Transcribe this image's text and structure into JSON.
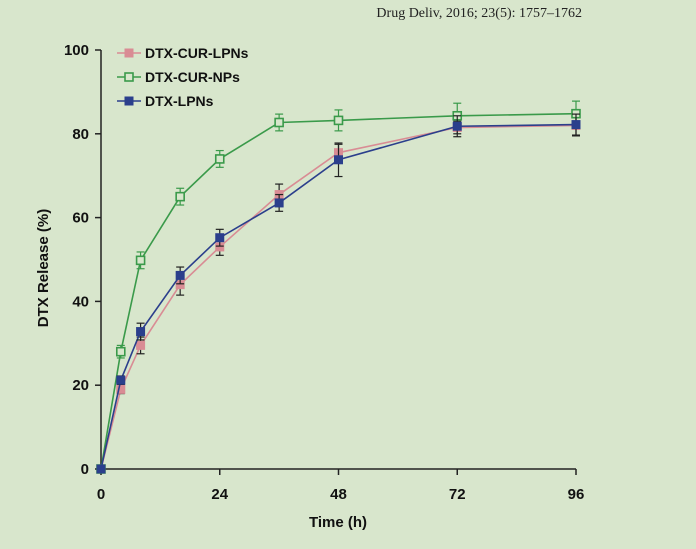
{
  "header": {
    "citation": "Drug Deliv, 2016; 23(5): 1757–1762"
  },
  "chart_data": {
    "type": "line",
    "title": "",
    "xlabel": "Time (h)",
    "ylabel": "DTX Release (%)",
    "xlim": [
      0,
      96
    ],
    "ylim": [
      0,
      100
    ],
    "xticks": [
      0,
      24,
      48,
      72,
      96
    ],
    "yticks": [
      0,
      20,
      40,
      60,
      80,
      100
    ],
    "x": [
      0,
      4,
      8,
      16,
      24,
      36,
      48,
      72,
      96
    ],
    "legend_position": "top-left",
    "grid": false,
    "series": [
      {
        "name": "DTX-CUR-LPNs",
        "color": "#d98c94",
        "marker": "filled-square",
        "values": [
          0,
          19,
          29.5,
          44,
          53,
          65.5,
          75.5,
          81.5,
          82
        ],
        "errors": [
          0,
          1,
          2,
          2.5,
          2,
          2.5,
          2,
          1.5,
          2.5
        ]
      },
      {
        "name": "DTX-CUR-NPs",
        "color": "#3a9a4a",
        "marker": "open-square",
        "values": [
          0,
          28,
          49.8,
          65,
          74,
          82.7,
          83.2,
          84.3,
          84.8
        ],
        "errors": [
          0,
          1.5,
          2,
          2,
          2,
          2,
          2.5,
          3,
          3
        ]
      },
      {
        "name": "DTX-LPNs",
        "color": "#2b3f8c",
        "marker": "filled-square",
        "values": [
          0,
          21.2,
          32.8,
          46.2,
          55.2,
          63.5,
          73.8,
          81.8,
          82.2
        ],
        "errors": [
          0,
          1,
          2,
          2,
          2,
          2,
          4,
          2.5,
          2.5
        ]
      }
    ]
  }
}
